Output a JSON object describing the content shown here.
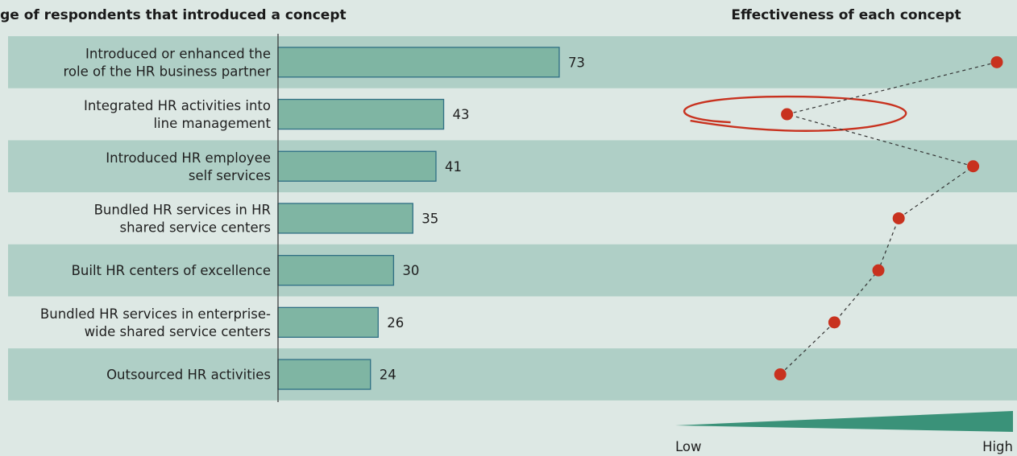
{
  "chart_data": [
    {
      "type": "bar",
      "orientation": "horizontal",
      "title": "Percentage of respondents that introduced a concept",
      "categories": [
        [
          "Introduced or enhanced the",
          "role of the HR business partner"
        ],
        [
          "Integrated HR activities into",
          "line management"
        ],
        [
          "Introduced HR employee",
          "self services"
        ],
        [
          "Bundled HR services in HR",
          "shared service centers"
        ],
        [
          "Built HR centers of excellence"
        ],
        [
          "Bundled HR services in enterprise-",
          "wide shared service centers"
        ],
        [
          "Outsourced HR activities"
        ]
      ],
      "values": [
        73,
        43,
        41,
        35,
        30,
        26,
        24
      ],
      "xlim": [
        0,
        100
      ]
    },
    {
      "type": "scatter",
      "title": "Effectiveness of each concept",
      "values": [
        0.95,
        0.33,
        0.88,
        0.66,
        0.6,
        0.47,
        0.31
      ],
      "xlim": [
        0,
        1
      ],
      "connected": true,
      "highlight_index": 1,
      "scale": {
        "low_label": "Low",
        "high_label": "High"
      }
    }
  ],
  "colors": {
    "background": "#dde8e4",
    "band": "#afcfc6",
    "bar_fill": "#7fb5a3",
    "bar_stroke": "#2f6f84",
    "dot": "#c8321f",
    "highlight_ring": "#c8321f",
    "scale_wedge": "#3a9279"
  }
}
